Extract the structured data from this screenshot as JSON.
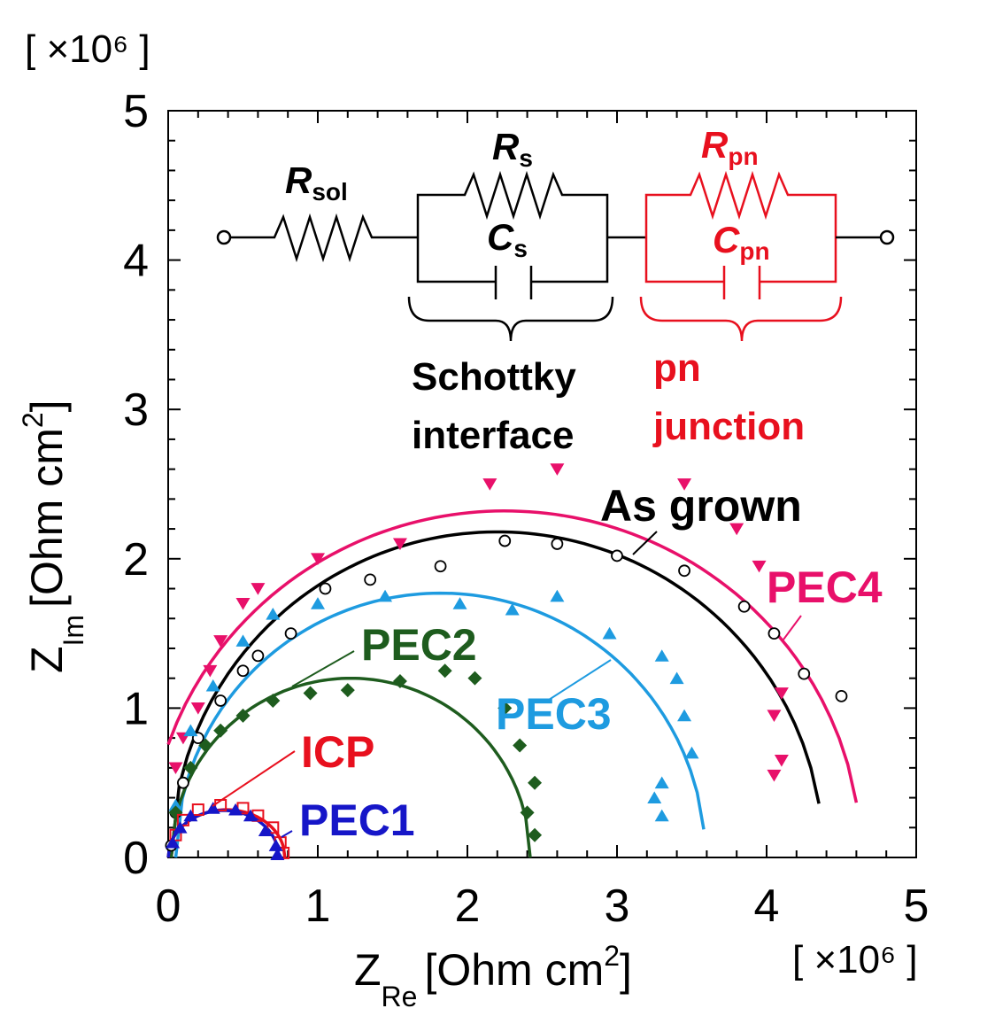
{
  "chart_data": {
    "type": "scatter",
    "xlabel": "Z_Re [Ohm cm^2]",
    "ylabel": "Z_Im [Ohm cm^2]",
    "xlabel_parts": {
      "main": "Z",
      "sub": "Re",
      "unit": "[Ohm cm",
      "sup": "2",
      "close": "]"
    },
    "ylabel_parts": {
      "main": "Z",
      "sub": "Im",
      "unit": "[Ohm cm",
      "sup": "2",
      "close": "]"
    },
    "x_multiplier": "[ ×10⁶ ]",
    "y_multiplier": "[ ×10⁶ ]",
    "xlim": [
      0,
      5
    ],
    "ylim": [
      0,
      5
    ],
    "xticks": [
      "0",
      "1",
      "2",
      "3",
      "4",
      "5"
    ],
    "yticks": [
      "0",
      "1",
      "2",
      "3",
      "4",
      "5"
    ],
    "grid": false,
    "series": [
      {
        "name": "As grown",
        "color": "#000000",
        "marker": "open-circle",
        "points": [
          [
            0.02,
            0.08
          ],
          [
            0.05,
            0.3
          ],
          [
            0.1,
            0.5
          ],
          [
            0.2,
            0.8
          ],
          [
            0.35,
            1.05
          ],
          [
            0.5,
            1.25
          ],
          [
            0.6,
            1.35
          ],
          [
            0.82,
            1.5
          ],
          [
            1.05,
            1.8
          ],
          [
            1.35,
            1.86
          ],
          [
            1.82,
            1.95
          ],
          [
            2.25,
            2.12
          ],
          [
            2.6,
            2.1
          ],
          [
            3.0,
            2.02
          ],
          [
            3.45,
            1.92
          ],
          [
            3.85,
            1.68
          ],
          [
            4.05,
            1.5
          ],
          [
            4.25,
            1.23
          ],
          [
            4.5,
            1.08
          ]
        ],
        "fit": {
          "center": 2.2,
          "radius": 2.18,
          "yscale": 1.0,
          "x_end": 4.35
        }
      },
      {
        "name": "PEC4",
        "color": "#e8106a",
        "marker": "triangle-down",
        "points": [
          [
            0.05,
            0.6
          ],
          [
            0.1,
            0.8
          ],
          [
            0.2,
            1.0
          ],
          [
            0.28,
            1.25
          ],
          [
            0.35,
            1.45
          ],
          [
            0.5,
            1.7
          ],
          [
            0.6,
            1.8
          ],
          [
            1.0,
            2.0
          ],
          [
            1.55,
            2.1
          ],
          [
            2.15,
            2.5
          ],
          [
            2.6,
            2.6
          ],
          [
            3.45,
            2.5
          ],
          [
            3.8,
            2.2
          ],
          [
            3.95,
            1.95
          ],
          [
            4.1,
            1.1
          ],
          [
            4.05,
            0.95
          ],
          [
            4.1,
            0.65
          ],
          [
            4.05,
            0.55
          ]
        ],
        "fit": {
          "center": 2.25,
          "radius": 2.38,
          "yscale": 0.975,
          "x_end": 4.6
        }
      },
      {
        "name": "PEC3",
        "color": "#1e9be0",
        "marker": "triangle-up",
        "points": [
          [
            0.05,
            0.35
          ],
          [
            0.15,
            0.85
          ],
          [
            0.3,
            1.15
          ],
          [
            0.5,
            1.45
          ],
          [
            0.7,
            1.63
          ],
          [
            1.0,
            1.7
          ],
          [
            1.45,
            1.75
          ],
          [
            1.95,
            1.7
          ],
          [
            2.3,
            1.66
          ],
          [
            2.6,
            1.75
          ],
          [
            2.95,
            1.5
          ],
          [
            3.3,
            1.35
          ],
          [
            3.4,
            1.2
          ],
          [
            3.45,
            0.95
          ],
          [
            3.5,
            0.7
          ],
          [
            3.3,
            0.5
          ],
          [
            3.25,
            0.4
          ],
          [
            3.3,
            0.28
          ]
        ],
        "fit": {
          "center": 1.82,
          "radius": 1.77,
          "yscale": 1.0,
          "x_end": 3.58
        }
      },
      {
        "name": "PEC2",
        "color": "#1e5c1e",
        "marker": "diamond",
        "points": [
          [
            0.05,
            0.3
          ],
          [
            0.15,
            0.6
          ],
          [
            0.25,
            0.75
          ],
          [
            0.35,
            0.85
          ],
          [
            0.5,
            0.95
          ],
          [
            0.7,
            1.05
          ],
          [
            0.95,
            1.1
          ],
          [
            1.2,
            1.12
          ],
          [
            1.55,
            1.18
          ],
          [
            1.85,
            1.25
          ],
          [
            2.05,
            1.2
          ],
          [
            2.25,
            1.0
          ],
          [
            2.35,
            0.75
          ],
          [
            2.45,
            0.5
          ],
          [
            2.4,
            0.3
          ],
          [
            2.45,
            0.15
          ]
        ],
        "fit": {
          "center": 1.22,
          "radius": 1.2,
          "yscale": 1.0,
          "x_end": 2.42
        }
      },
      {
        "name": "ICP",
        "color": "#e8101e",
        "marker": "square",
        "points": [
          [
            0.05,
            0.15
          ],
          [
            0.1,
            0.25
          ],
          [
            0.2,
            0.32
          ],
          [
            0.35,
            0.35
          ],
          [
            0.5,
            0.33
          ],
          [
            0.6,
            0.28
          ],
          [
            0.7,
            0.2
          ],
          [
            0.75,
            0.1
          ],
          [
            0.77,
            0.03
          ]
        ],
        "fit": {
          "center": 0.39,
          "radius": 0.39,
          "yscale": 0.82,
          "x_end": 0.78
        }
      },
      {
        "name": "PEC1",
        "color": "#1616c8",
        "marker": "triangle-up",
        "points": [
          [
            0.03,
            0.1
          ],
          [
            0.08,
            0.2
          ],
          [
            0.15,
            0.28
          ],
          [
            0.3,
            0.33
          ],
          [
            0.45,
            0.32
          ],
          [
            0.55,
            0.28
          ],
          [
            0.65,
            0.18
          ],
          [
            0.72,
            0.08
          ],
          [
            0.73,
            0.02
          ]
        ],
        "fit": {
          "center": 0.37,
          "radius": 0.37,
          "yscale": 0.85,
          "x_end": 0.74
        }
      }
    ],
    "labels": [
      {
        "text": "As grown",
        "color": "#000000",
        "series": "As grown"
      },
      {
        "text": "PEC4",
        "color": "#e8106a",
        "series": "PEC4"
      },
      {
        "text": "PEC3",
        "color": "#1e9be0",
        "series": "PEC3"
      },
      {
        "text": "PEC2",
        "color": "#1e5c1e",
        "series": "PEC2"
      },
      {
        "text": "ICP",
        "color": "#e8101e",
        "series": "ICP"
      },
      {
        "text": "PEC1",
        "color": "#1616c8",
        "series": "PEC1"
      }
    ]
  },
  "circuit": {
    "r_sol": {
      "main": "R",
      "sub": "sol"
    },
    "r_s": {
      "main": "R",
      "sub": "s"
    },
    "c_s": {
      "main": "C",
      "sub": "s"
    },
    "r_pn": {
      "main": "R",
      "sub": "pn"
    },
    "c_pn": {
      "main": "C",
      "sub": "pn"
    },
    "schottky_line1": "Schottky",
    "schottky_line2": "interface",
    "pn_line1": "pn",
    "pn_line2": "junction",
    "black_color": "#000000",
    "red_color": "#e8101e"
  }
}
